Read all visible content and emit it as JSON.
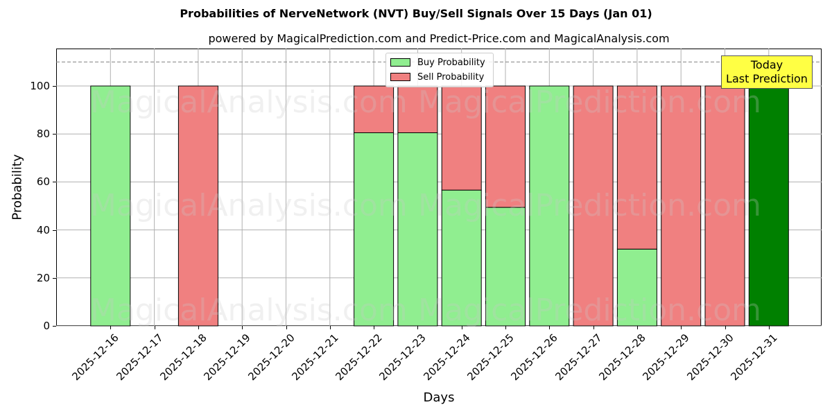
{
  "header": {
    "title": "Probabilities of NerveNetwork (NVT) Buy/Sell Signals Over 15 Days (Jan 01)",
    "subtitle": "powered by MagicalPrediction.com and Predict-Price.com and MagicalAnalysis.com"
  },
  "axes": {
    "xlabel": "Days",
    "ylabel": "Probability",
    "yticks": [
      "0",
      "20",
      "40",
      "60",
      "80",
      "100"
    ]
  },
  "legend": {
    "buy_label": "Buy Probability",
    "sell_label": "Sell Probability"
  },
  "annotation": {
    "line1": "Today",
    "line2": "Last Prediction"
  },
  "watermarks": [
    "MagicalAnalysis.com",
    "MagicalPrediction.com"
  ],
  "colors": {
    "buy": "#90ee90",
    "sell": "#f08080",
    "today": "#008000",
    "annotation_bg": "#ffff44",
    "grid": "#b0b0b0",
    "threshold_line": "#808080"
  },
  "chart_data": {
    "type": "bar",
    "stacked": true,
    "title": "Probabilities of NerveNetwork (NVT) Buy/Sell Signals Over 15 Days (Jan 01)",
    "subtitle": "powered by MagicalPrediction.com and Predict-Price.com and MagicalAnalysis.com",
    "xlabel": "Days",
    "ylabel": "Probability",
    "ylim": [
      0,
      115
    ],
    "yticks": [
      0,
      20,
      40,
      60,
      80,
      100
    ],
    "grid": true,
    "legend_position": "upper center",
    "threshold_line": {
      "y": 110,
      "style": "dashed",
      "color": "#808080"
    },
    "categories": [
      "2025-12-16",
      "2025-12-17",
      "2025-12-18",
      "2025-12-19",
      "2025-12-20",
      "2025-12-21",
      "2025-12-22",
      "2025-12-23",
      "2025-12-24",
      "2025-12-25",
      "2025-12-26",
      "2025-12-27",
      "2025-12-28",
      "2025-12-29",
      "2025-12-30",
      "2025-12-31"
    ],
    "series": [
      {
        "name": "Buy Probability",
        "color": "#90ee90",
        "values": [
          100,
          0,
          0,
          0,
          0,
          0,
          80.5,
          80.5,
          56.6,
          49.4,
          100,
          0,
          32.0,
          0,
          0,
          100
        ]
      },
      {
        "name": "Sell Probability",
        "color": "#f08080",
        "values": [
          0,
          0,
          100,
          0,
          0,
          0,
          19.5,
          19.5,
          43.4,
          50.6,
          0,
          100,
          68.0,
          100,
          100,
          0
        ]
      }
    ],
    "annotations": [
      {
        "text": "Today\nLast Prediction",
        "x": "2025-12-31",
        "y": 105,
        "note": "2025-12-31 bar drawn in dark green (#008000)"
      }
    ]
  }
}
